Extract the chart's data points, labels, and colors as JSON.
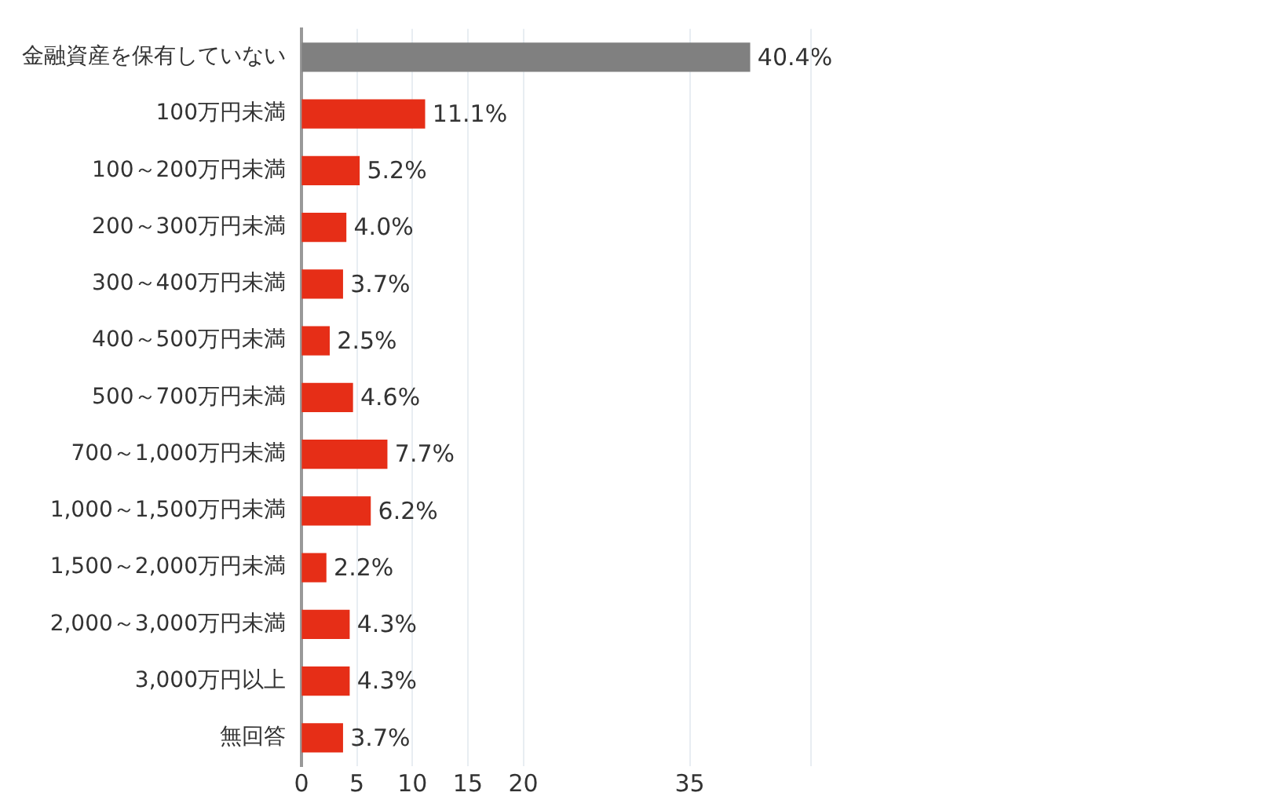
{
  "chart_data": {
    "type": "bar",
    "orientation": "horizontal",
    "categories": [
      "金融資産を保有していない",
      "100万円未満",
      "100～200万円未満",
      "200～300万円未満",
      "300～400万円未満",
      "400～500万円未満",
      "500～700万円未満",
      "700～1,000万円未満",
      "1,000～1,500万円未満",
      "1,500～2,000万円未満",
      "2,000～3,000万円未満",
      "3,000万円以上",
      "無回答"
    ],
    "values": [
      40.4,
      11.1,
      5.2,
      4.0,
      3.7,
      2.5,
      4.6,
      7.7,
      6.2,
      2.2,
      4.3,
      4.3,
      3.7
    ],
    "value_labels": [
      "40.4%",
      "11.1%",
      "5.2%",
      "4.0%",
      "3.7%",
      "2.5%",
      "4.6%",
      "7.7%",
      "6.2%",
      "2.2%",
      "4.3%",
      "4.3%",
      "3.7%"
    ],
    "colors": [
      "#808080",
      "#e62e17",
      "#e62e17",
      "#e62e17",
      "#e62e17",
      "#e62e17",
      "#e62e17",
      "#e62e17",
      "#e62e17",
      "#e62e17",
      "#e62e17",
      "#e62e17",
      "#e62e17"
    ],
    "xlim": [
      0,
      46
    ],
    "xticks": [
      0,
      5,
      10,
      15,
      20,
      35
    ],
    "grid": "x",
    "legend": false
  }
}
